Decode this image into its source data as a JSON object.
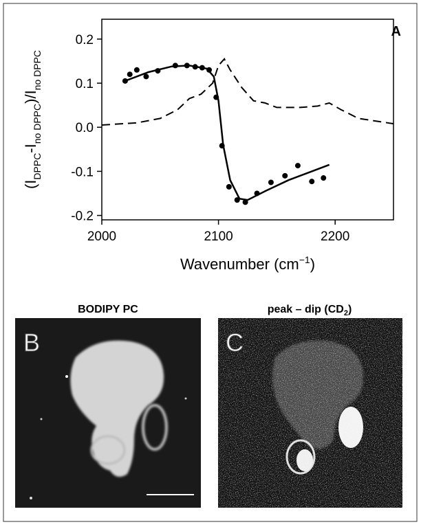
{
  "chart_data": {
    "type": "line",
    "panel_label": "A",
    "x_label": {
      "text": "Wavenumber (cm",
      "sup": "−1",
      "close": ")"
    },
    "y_label": {
      "p1": "(I",
      "s1": "DPPC",
      "p2": "-I",
      "s2": "no DPPC",
      "p3": ")/I",
      "s3": "no DPPC"
    },
    "xlim": [
      2000,
      2250
    ],
    "xticks": [
      2000,
      2100,
      2200
    ],
    "ylim": [
      -0.21,
      0.245
    ],
    "yticks": [
      0.2,
      0.1,
      {
        "value": 0,
        "label": "0.0"
      },
      -0.1,
      -0.2
    ],
    "series": [
      {
        "style": "markers",
        "color": "#000000",
        "x": [
          2020,
          2024,
          2030,
          2038,
          2048,
          2063,
          2073,
          2080,
          2086,
          2092,
          2098,
          2103,
          2109,
          2116,
          2123,
          2133,
          2145,
          2157,
          2168,
          2180,
          2190
        ],
        "y": [
          0.105,
          0.12,
          0.13,
          0.115,
          0.128,
          0.14,
          0.14,
          0.137,
          0.135,
          0.13,
          0.068,
          -0.042,
          -0.135,
          -0.165,
          -0.17,
          -0.15,
          -0.125,
          -0.11,
          -0.087,
          -0.123,
          -0.115
        ]
      },
      {
        "style": "solid",
        "color": "#000000",
        "x": [
          2020,
          2040,
          2060,
          2075,
          2090,
          2096,
          2100,
          2104,
          2110,
          2118,
          2125,
          2140,
          2160,
          2180,
          2195
        ],
        "y": [
          0.105,
          0.125,
          0.138,
          0.14,
          0.133,
          0.115,
          0.06,
          -0.04,
          -0.12,
          -0.162,
          -0.165,
          -0.145,
          -0.12,
          -0.1,
          -0.085
        ]
      },
      {
        "style": "dashed",
        "color": "#000000",
        "x": [
          2000,
          2030,
          2050,
          2065,
          2075,
          2085,
          2095,
          2100,
          2105,
          2110,
          2120,
          2130,
          2140,
          2150,
          2170,
          2185,
          2195,
          2205,
          2220,
          2240,
          2250
        ],
        "y": [
          0.005,
          0.01,
          0.02,
          0.04,
          0.065,
          0.075,
          0.1,
          0.14,
          0.155,
          0.13,
          0.09,
          0.06,
          0.055,
          0.045,
          0.045,
          0.048,
          0.055,
          0.04,
          0.02,
          0.012,
          0.008
        ]
      }
    ]
  },
  "images": [
    {
      "title": "BODIPY PC",
      "label": "B"
    },
    {
      "title": {
        "text": "peak – dip (CD",
        "sub": "2",
        "close": ")"
      },
      "label": "C"
    }
  ]
}
